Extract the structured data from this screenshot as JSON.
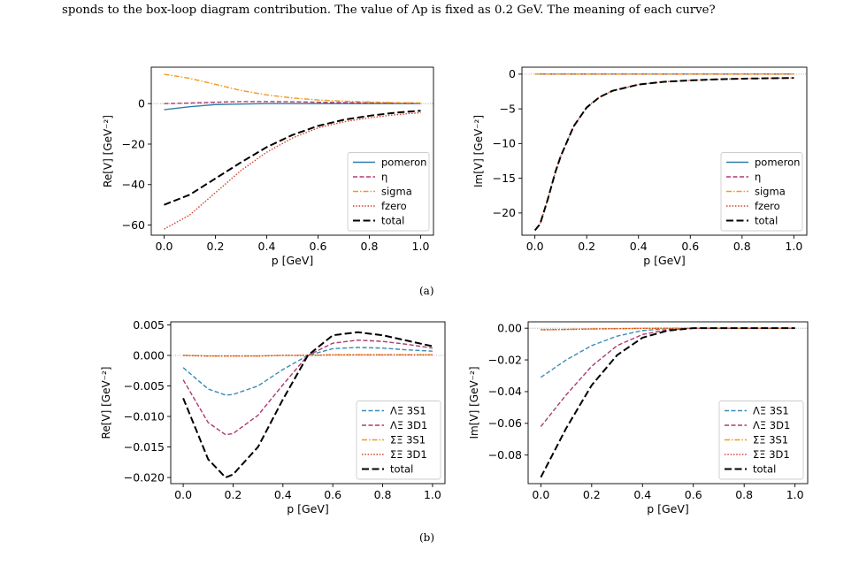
{
  "header": {
    "line1": "sponds to the box-loop diagram contribution. The value of Λp is fixed as 0.2 GeV. The meaning of each curve?"
  },
  "sublabels": {
    "a": "(a)",
    "b": "(b)"
  },
  "series_colors": {
    "pomeron": "#2e7eab",
    "eta": "#b03c6e",
    "sigma": "#f09a1f",
    "fzero": "#d2412e",
    "total": "#000000",
    "LX_3S1": "#3a8bb7",
    "LX_3D1": "#ab3a70",
    "SX_3S1": "#f09a1f",
    "SX_3D1": "#d2412e"
  },
  "chart_data": [
    {
      "type": "line",
      "panel": "a-left",
      "xlabel": "p [GeV]",
      "ylabel": "Re[V] [GeV⁻²]",
      "xlim": [
        -0.05,
        1.05
      ],
      "ylim": [
        -65,
        18
      ],
      "xticks": [
        0.0,
        0.2,
        0.4,
        0.6,
        0.8,
        1.0
      ],
      "xtick_labels": [
        "0.0",
        "0.2",
        "0.4",
        "0.6",
        "0.8",
        "1.0"
      ],
      "yticks": [
        -60,
        -40,
        -20,
        0
      ],
      "ytick_labels": [
        "−60",
        "−40",
        "−20",
        "0"
      ],
      "legend_position": "bottom-right",
      "x": [
        0.0,
        0.1,
        0.2,
        0.3,
        0.4,
        0.5,
        0.6,
        0.7,
        0.8,
        0.9,
        1.0
      ],
      "series": [
        {
          "name": "pomeron",
          "style": "solid",
          "color": "#2e7eab",
          "values": [
            -3,
            -1.5,
            -0.5,
            -0.2,
            0,
            0,
            0,
            0,
            0,
            0,
            0
          ]
        },
        {
          "name": "η",
          "style": "dashed",
          "color": "#b03c6e",
          "values": [
            0,
            0.3,
            0.7,
            1.0,
            1.0,
            0.9,
            0.7,
            0.5,
            0.4,
            0.3,
            0.3
          ]
        },
        {
          "name": "sigma",
          "style": "dashdot",
          "color": "#f09a1f",
          "values": [
            14.5,
            12.5,
            9.5,
            6.5,
            4.3,
            2.8,
            1.8,
            1.2,
            0.8,
            0.5,
            0.3
          ]
        },
        {
          "name": "fzero",
          "style": "dotted",
          "color": "#d2412e",
          "values": [
            -62,
            -55,
            -44,
            -33,
            -24,
            -17,
            -12,
            -9,
            -7,
            -5.5,
            -4.5
          ]
        },
        {
          "name": "total",
          "style": "longdash",
          "color": "#000000",
          "values": [
            -50,
            -45,
            -37,
            -29,
            -21.5,
            -15.5,
            -11,
            -8,
            -6,
            -4.5,
            -3.5
          ]
        }
      ]
    },
    {
      "type": "line",
      "panel": "a-right",
      "xlabel": "p [GeV]",
      "ylabel": "Im[V] [GeV⁻²]",
      "xlim": [
        -0.05,
        1.05
      ],
      "ylim": [
        -23.2,
        1.0
      ],
      "xticks": [
        0.0,
        0.2,
        0.4,
        0.6,
        0.8,
        1.0
      ],
      "xtick_labels": [
        "0.0",
        "0.2",
        "0.4",
        "0.6",
        "0.8",
        "1.0"
      ],
      "yticks": [
        -20,
        -15,
        -10,
        -5,
        0
      ],
      "ytick_labels": [
        "−20",
        "−15",
        "−10",
        "−5",
        "0"
      ],
      "legend_position": "bottom-right",
      "x": [
        0.0,
        0.02,
        0.05,
        0.08,
        0.1,
        0.15,
        0.2,
        0.25,
        0.3,
        0.4,
        0.5,
        0.6,
        0.7,
        0.8,
        0.9,
        1.0
      ],
      "series": [
        {
          "name": "pomeron",
          "style": "solid",
          "color": "#2e7eab",
          "values": [
            0,
            0,
            0,
            0,
            0,
            0,
            0,
            0,
            0,
            0,
            0,
            0,
            0,
            0,
            0,
            0
          ]
        },
        {
          "name": "η",
          "style": "dashed",
          "color": "#b03c6e",
          "values": [
            0,
            0,
            0,
            0,
            0,
            0,
            0,
            0,
            0,
            0,
            0,
            0,
            0,
            0,
            0,
            0
          ]
        },
        {
          "name": "sigma",
          "style": "dashdot",
          "color": "#f09a1f",
          "values": [
            0,
            0,
            0,
            0,
            0,
            0,
            0,
            0,
            0,
            0,
            0,
            0,
            0,
            0,
            0,
            0
          ]
        },
        {
          "name": "fzero",
          "style": "dotted",
          "color": "#d2412e",
          "values": [
            -22.5,
            -21.6,
            -18,
            -14,
            -11.8,
            -7.5,
            -4.8,
            -3.3,
            -2.4,
            -1.5,
            -1.1,
            -0.9,
            -0.75,
            -0.65,
            -0.6,
            -0.55
          ]
        },
        {
          "name": "total",
          "style": "longdash",
          "color": "#000000",
          "values": [
            -22.5,
            -21.6,
            -18,
            -14,
            -11.8,
            -7.5,
            -4.8,
            -3.3,
            -2.4,
            -1.5,
            -1.1,
            -0.9,
            -0.75,
            -0.65,
            -0.6,
            -0.55
          ]
        }
      ]
    },
    {
      "type": "line",
      "panel": "b-left",
      "xlabel": "p [GeV]",
      "ylabel": "Re[V] [GeV⁻²]",
      "xlim": [
        -0.05,
        1.05
      ],
      "ylim": [
        -0.021,
        0.0055
      ],
      "xticks": [
        0.0,
        0.2,
        0.4,
        0.6,
        0.8,
        1.0
      ],
      "xtick_labels": [
        "0.0",
        "0.2",
        "0.4",
        "0.6",
        "0.8",
        "1.0"
      ],
      "yticks": [
        -0.02,
        -0.015,
        -0.01,
        -0.005,
        0.0,
        0.005
      ],
      "ytick_labels": [
        "−0.020",
        "−0.015",
        "−0.010",
        "−0.005",
        "0.000",
        "0.005"
      ],
      "legend_position": "bottom-right",
      "x": [
        0.0,
        0.1,
        0.17,
        0.2,
        0.3,
        0.4,
        0.5,
        0.6,
        0.7,
        0.8,
        0.9,
        1.0
      ],
      "series": [
        {
          "name": "ΛΞ 3S1",
          "style": "dashed",
          "color": "#3a8bb7",
          "values": [
            -0.002,
            -0.0055,
            -0.0065,
            -0.0064,
            -0.005,
            -0.0023,
            0.0,
            0.0011,
            0.0013,
            0.0012,
            0.0009,
            0.0007
          ]
        },
        {
          "name": "ΛΞ 3D1",
          "style": "dashed",
          "color": "#ab3a70",
          "values": [
            -0.004,
            -0.011,
            -0.013,
            -0.0128,
            -0.0098,
            -0.0048,
            0.0,
            0.002,
            0.0025,
            0.0023,
            0.0018,
            0.0012
          ]
        },
        {
          "name": "ΣΞ 3S1",
          "style": "dashdot",
          "color": "#f09a1f",
          "values": [
            0.0,
            -0.0001,
            -0.0001,
            -0.0001,
            -0.0001,
            0.0,
            0.0,
            0.0001,
            0.0001,
            0.0001,
            0.0001,
            0.0001
          ]
        },
        {
          "name": "ΣΞ 3D1",
          "style": "dotted",
          "color": "#d2412e",
          "values": [
            0.0,
            -0.0001,
            -0.0001,
            -0.0001,
            -0.0001,
            0.0,
            0.0,
            0.0001,
            0.0001,
            0.0001,
            0.0001,
            0.0001
          ]
        },
        {
          "name": "total",
          "style": "longdash",
          "color": "#000000",
          "values": [
            -0.007,
            -0.017,
            -0.02,
            -0.0195,
            -0.015,
            -0.0072,
            0.0,
            0.0033,
            0.0038,
            0.0033,
            0.0024,
            0.0015
          ]
        }
      ]
    },
    {
      "type": "line",
      "panel": "b-right",
      "xlabel": "p [GeV]",
      "ylabel": "Im[V] [GeV⁻²]",
      "xlim": [
        -0.05,
        1.05
      ],
      "ylim": [
        -0.098,
        0.004
      ],
      "xticks": [
        0.0,
        0.2,
        0.4,
        0.6,
        0.8,
        1.0
      ],
      "xtick_labels": [
        "0.0",
        "0.2",
        "0.4",
        "0.6",
        "0.8",
        "1.0"
      ],
      "yticks": [
        -0.08,
        -0.06,
        -0.04,
        -0.02,
        0.0
      ],
      "ytick_labels": [
        "−0.08",
        "−0.06",
        "−0.04",
        "−0.02",
        "0.00"
      ],
      "legend_position": "bottom-right",
      "x": [
        0.0,
        0.1,
        0.2,
        0.3,
        0.4,
        0.5,
        0.6,
        0.7,
        0.8,
        0.9,
        1.0
      ],
      "series": [
        {
          "name": "ΛΞ 3S1",
          "style": "dashed",
          "color": "#3a8bb7",
          "values": [
            -0.031,
            -0.02,
            -0.011,
            -0.005,
            -0.0015,
            -0.0003,
            0.0,
            0.0,
            0.0,
            0.0,
            0.0
          ]
        },
        {
          "name": "ΛΞ 3D1",
          "style": "dashed",
          "color": "#ab3a70",
          "values": [
            -0.062,
            -0.042,
            -0.024,
            -0.011,
            -0.004,
            -0.001,
            0.0,
            0.0,
            0.0,
            0.0,
            0.0
          ]
        },
        {
          "name": "ΣΞ 3S1",
          "style": "dashdot",
          "color": "#f09a1f",
          "values": [
            -0.001,
            -0.0008,
            -0.0005,
            -0.0003,
            -0.0001,
            0.0,
            0.0,
            0.0,
            0.0,
            0.0,
            0.0
          ]
        },
        {
          "name": "ΣΞ 3D1",
          "style": "dotted",
          "color": "#d2412e",
          "values": [
            -0.001,
            -0.0008,
            -0.0005,
            -0.0003,
            -0.0001,
            0.0,
            0.0,
            0.0,
            0.0,
            0.0,
            0.0
          ]
        },
        {
          "name": "total",
          "style": "longdash",
          "color": "#000000",
          "values": [
            -0.094,
            -0.063,
            -0.036,
            -0.017,
            -0.006,
            -0.0015,
            0.0,
            0.0,
            0.0,
            0.0,
            0.0
          ]
        }
      ]
    }
  ]
}
